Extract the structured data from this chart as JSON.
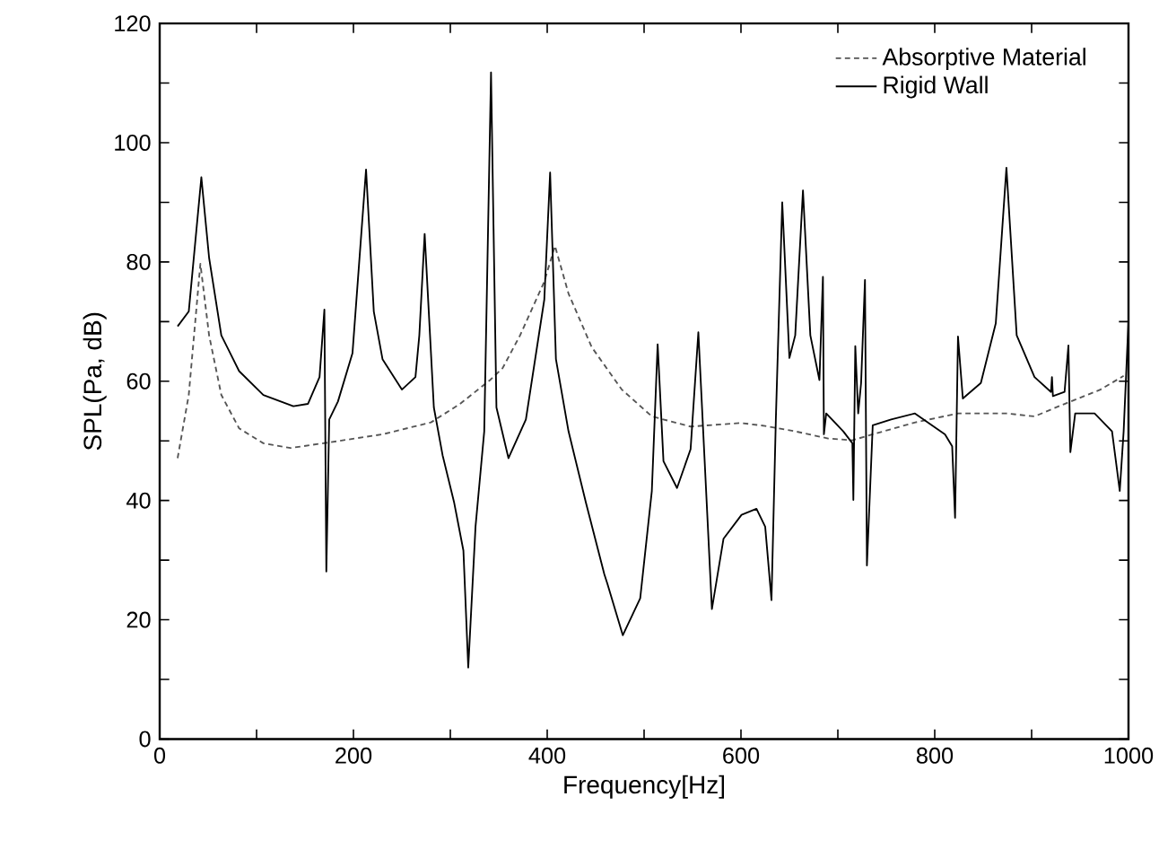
{
  "chart_data": {
    "type": "line",
    "xlabel": "Frequency[Hz]",
    "ylabel": "SPL(Pa, dB)",
    "xlim": [
      0,
      1000
    ],
    "ylim": [
      0,
      120
    ],
    "xticks": [
      0,
      {
        "value": 100,
        "label": null
      },
      200,
      {
        "value": 300,
        "label": null
      },
      400,
      {
        "value": 500,
        "label": null
      },
      600,
      {
        "value": 700,
        "label": null
      },
      800,
      {
        "value": 900,
        "label": null
      },
      1000
    ],
    "yticks": [
      0,
      {
        "value": 10,
        "label": null
      },
      20,
      {
        "value": 30,
        "label": null
      },
      40,
      {
        "value": 50,
        "label": null
      },
      60,
      {
        "value": 70,
        "label": null
      },
      80,
      {
        "value": 90,
        "label": null
      },
      100,
      {
        "value": 110,
        "label": null
      },
      120
    ],
    "legend": "top right",
    "marker": "none",
    "series": [
      {
        "name": "Absorptive Material",
        "color": "#555555",
        "line_style": "dashed",
        "x": [
          18.5,
          30,
          42,
          51,
          63.6,
          82,
          107,
          135,
          169,
          230,
          280,
          310,
          341,
          354,
          372,
          397,
          408,
          422,
          446,
          477,
          508,
          548,
          600,
          625,
          656,
          690,
          715,
          736,
          780,
          824,
          874,
          903,
          934,
          971,
          995
        ],
        "values": [
          47.1,
          57.7,
          79.7,
          67.7,
          57.7,
          52.1,
          49.6,
          48.8,
          49.6,
          51.1,
          53.1,
          56.2,
          60.2,
          62.2,
          67.7,
          76.7,
          82.7,
          74.7,
          65.7,
          58.6,
          54.1,
          52.4,
          53,
          52.5,
          51.6,
          50.4,
          50.1,
          51.1,
          53.1,
          54.6,
          54.6,
          54.1,
          56.2,
          58.6,
          60.9
        ]
      },
      {
        "name": "Rigid Wall",
        "color": "#000000",
        "line_style": "solid",
        "x": [
          18.5,
          30,
          43,
          51,
          63.6,
          82,
          107,
          138,
          153,
          165,
          170,
          172,
          175,
          184,
          199,
          213,
          221,
          230,
          250,
          264,
          268,
          273.5,
          283,
          292,
          304,
          313.5,
          318.5,
          326,
          335,
          342,
          347.6,
          360,
          378,
          397,
          403,
          409,
          422,
          440,
          459,
          462,
          478,
          496,
          508,
          514,
          520,
          534,
          548,
          556,
          570,
          582,
          600.6,
          616,
          625,
          631.5,
          636,
          642.6,
          650,
          656,
          664,
          671.6,
          681,
          684.6,
          685.6,
          688,
          705.6,
          715,
          716,
          718,
          721,
          724,
          728,
          730,
          736,
          755,
          779.6,
          810.6,
          818,
          821,
          824,
          829,
          847.6,
          863,
          874,
          884.6,
          903,
          920,
          921,
          922,
          934,
          938,
          940,
          945,
          965,
          983,
          991,
          995,
          1000
        ],
        "values": [
          69.2,
          71.7,
          94.2,
          80.7,
          67.7,
          61.7,
          57.7,
          55.8,
          56.2,
          60.7,
          72,
          28.1,
          53.6,
          56.6,
          64.7,
          95.5,
          71.7,
          63.7,
          58.6,
          60.7,
          67.7,
          84.7,
          55.6,
          47.6,
          39.6,
          31.6,
          12,
          35.6,
          51.6,
          111.8,
          55.6,
          47.1,
          53.6,
          73.7,
          95,
          63.7,
          51.6,
          39.6,
          27.6,
          26.1,
          17.4,
          23.6,
          41.6,
          66.2,
          46.6,
          42.1,
          48.6,
          68.2,
          21.8,
          33.6,
          37.6,
          38.6,
          35.6,
          23.3,
          53.6,
          90,
          63.9,
          67.7,
          92,
          67.7,
          60.2,
          77.5,
          51.1,
          54.6,
          51.6,
          49.6,
          40.1,
          65.9,
          54.6,
          59.7,
          77,
          29.1,
          52.6,
          53.6,
          54.6,
          51.1,
          49.1,
          37.1,
          67.5,
          57.1,
          59.7,
          69.7,
          95.8,
          67.7,
          60.7,
          58.2,
          60.7,
          57.5,
          58.2,
          66,
          48.1,
          54.6,
          54.6,
          51.6,
          41.6,
          51.6,
          70.2
        ]
      }
    ]
  }
}
